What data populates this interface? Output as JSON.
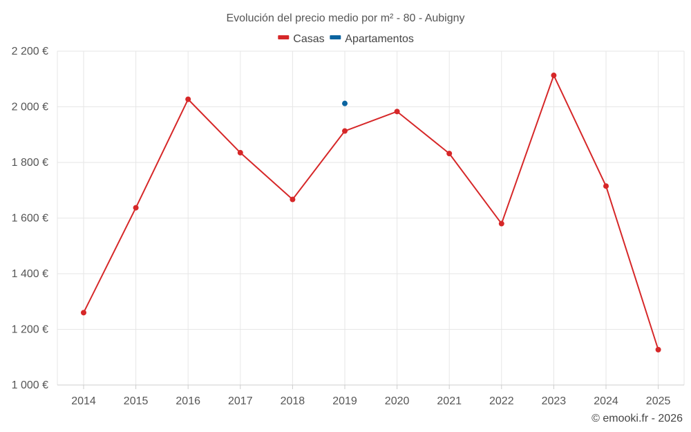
{
  "chart_data": {
    "type": "line",
    "title": "Evolución del precio medio por m² - 80 - Aubigny",
    "categories": [
      "2014",
      "2015",
      "2016",
      "2017",
      "2018",
      "2019",
      "2020",
      "2021",
      "2022",
      "2023",
      "2024",
      "2025"
    ],
    "series": [
      {
        "name": "Casas",
        "color": "#d62728",
        "values": [
          1260,
          1637,
          2027,
          1835,
          1667,
          1913,
          1983,
          1832,
          1580,
          2113,
          1715,
          1127
        ]
      },
      {
        "name": "Apartamentos",
        "color": "#0b64a0",
        "values": [
          null,
          null,
          null,
          null,
          null,
          2012,
          null,
          null,
          null,
          null,
          null,
          null
        ]
      }
    ],
    "ylim": [
      1000,
      2200
    ],
    "yticks": [
      1000,
      1200,
      1400,
      1600,
      1800,
      2000,
      2200
    ],
    "ytick_labels": [
      "1 000 €",
      "1 200 €",
      "1 400 €",
      "1 600 €",
      "1 800 €",
      "2 000 €",
      "2 200 €"
    ],
    "legend_position": "top-center",
    "grid": true
  },
  "credit": "© emooki.fr - 2026"
}
